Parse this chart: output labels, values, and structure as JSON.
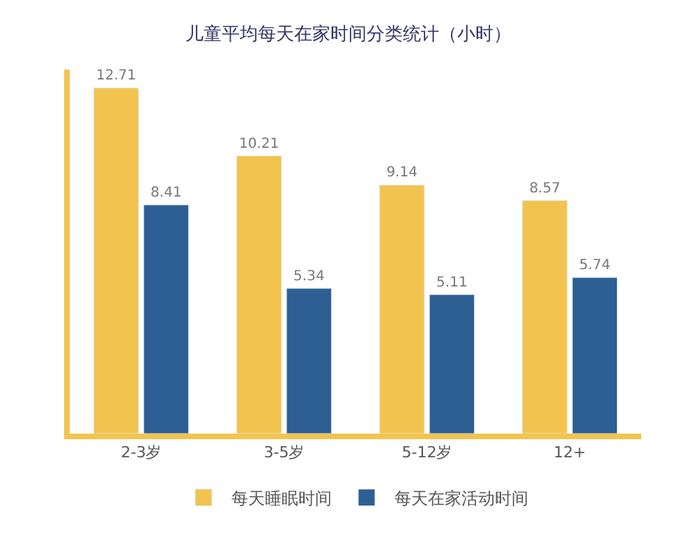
{
  "chart_data": {
    "type": "bar",
    "title": "儿童平均每天在家时间分类统计（小时）",
    "categories": [
      "2-3岁",
      "3-5岁",
      "5-12岁",
      "12+"
    ],
    "series": [
      {
        "name": "每天睡眠时间",
        "color": "#f2c44f",
        "values": [
          12.71,
          10.21,
          9.14,
          8.57
        ]
      },
      {
        "name": "每天在家活动时间",
        "color": "#2d5f95",
        "values": [
          8.41,
          5.34,
          5.11,
          5.74
        ]
      }
    ],
    "data_labels": true,
    "legend": "bottom",
    "tick_labels": "x"
  }
}
